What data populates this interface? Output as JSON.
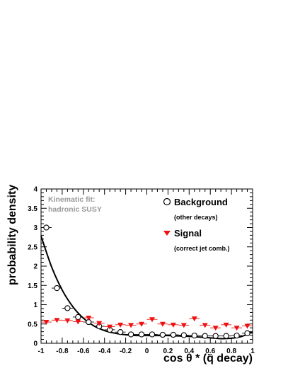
{
  "chart_data": {
    "type": "scatter",
    "xlabel": "cos θ * (q̃ decay)",
    "ylabel": "probability density",
    "xlim": [
      -1,
      1
    ],
    "ylim": [
      0,
      4
    ],
    "x_ticks": [
      "-1",
      "-0.8",
      "-0.6",
      "-0.4",
      "-0.2",
      "0",
      "0.2",
      "0.4",
      "0.6",
      "0.8",
      "1"
    ],
    "y_ticks": [
      "0",
      "0.5",
      "1",
      "1.5",
      "2",
      "2.5",
      "3",
      "3.5",
      "4"
    ],
    "annotation": [
      "Kinematic fit:",
      "hadronic SUSY"
    ],
    "legend": {
      "background_label": "Background",
      "background_sub": "(other decays)",
      "signal_label": "Signal",
      "signal_sub": "(correct jet comb.)"
    },
    "series": [
      {
        "name": "Background",
        "marker": "open-circle",
        "color": "#000000",
        "x": [
          -0.95,
          -0.85,
          -0.75,
          -0.65,
          -0.55,
          -0.45,
          -0.35,
          -0.25,
          -0.15,
          -0.05,
          0.05,
          0.15,
          0.25,
          0.35,
          0.45,
          0.55,
          0.65,
          0.75,
          0.85,
          0.95
        ],
        "y": [
          3.0,
          1.43,
          0.91,
          0.68,
          0.55,
          0.44,
          0.35,
          0.29,
          0.23,
          0.23,
          0.23,
          0.22,
          0.22,
          0.21,
          0.2,
          0.19,
          0.19,
          0.19,
          0.2,
          0.26
        ]
      },
      {
        "name": "Signal",
        "marker": "triangle-down",
        "color": "#ee1111",
        "x": [
          -0.95,
          -0.85,
          -0.75,
          -0.65,
          -0.55,
          -0.45,
          -0.35,
          -0.25,
          -0.15,
          -0.05,
          0.05,
          0.15,
          0.25,
          0.35,
          0.45,
          0.55,
          0.65,
          0.75,
          0.85,
          0.95
        ],
        "y": [
          0.55,
          0.6,
          0.59,
          0.56,
          0.66,
          0.52,
          0.43,
          0.48,
          0.47,
          0.5,
          0.62,
          0.5,
          0.48,
          0.47,
          0.64,
          0.47,
          0.4,
          0.48,
          0.4,
          0.45
        ]
      }
    ],
    "fit_curve": {
      "name": "fit",
      "color": "#000000",
      "x": [
        -1.0,
        -0.9,
        -0.8,
        -0.7,
        -0.6,
        -0.5,
        -0.4,
        -0.3,
        -0.2,
        -0.1,
        0.0,
        0.1,
        0.2,
        0.3,
        0.4,
        0.5,
        0.6,
        0.7,
        0.8,
        0.9,
        1.0
      ],
      "y": [
        2.78,
        1.98,
        1.38,
        0.95,
        0.65,
        0.45,
        0.33,
        0.26,
        0.22,
        0.2,
        0.2,
        0.2,
        0.2,
        0.19,
        0.18,
        0.16,
        0.14,
        0.12,
        0.13,
        0.18,
        0.3
      ]
    }
  }
}
